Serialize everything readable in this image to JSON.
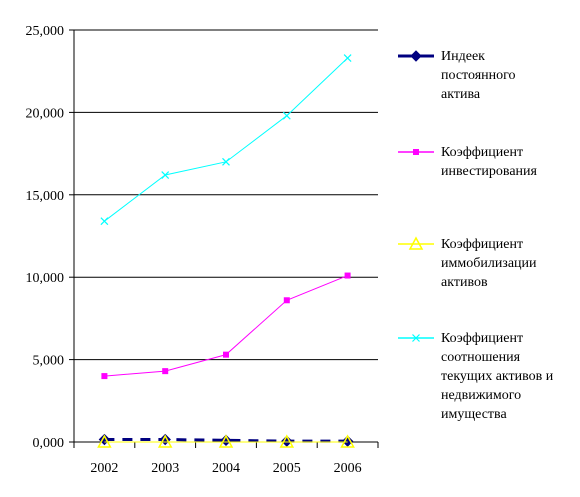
{
  "chart_data": {
    "type": "line",
    "categories": [
      "2002",
      "2003",
      "2004",
      "2005",
      "2006"
    ],
    "ylim": [
      0,
      25000
    ],
    "yticks": [
      0,
      5000,
      10000,
      15000,
      20000,
      25000
    ],
    "ytick_labels": [
      "0,000",
      "5,000",
      "10,000",
      "15,000",
      "20,000",
      "25,000"
    ],
    "grid": true,
    "legend_position": "right",
    "series": [
      {
        "name": "Индеек постоянного актива",
        "name_lines": [
          "Индеек",
          "постоянного",
          "актива"
        ],
        "values": [
          150,
          150,
          100,
          50,
          50
        ],
        "color": "#000080",
        "marker": "diamond",
        "dashed": true
      },
      {
        "name": "Коэффициент инвестирования",
        "name_lines": [
          "Коэффициент",
          "инвестирования"
        ],
        "values": [
          4000,
          4300,
          5300,
          8600,
          10100
        ],
        "color": "#ff00ff",
        "marker": "square",
        "dashed": false
      },
      {
        "name": "Коэффициент иммобилизации активов",
        "name_lines": [
          "Коэффициент",
          "иммобилизации",
          "активов"
        ],
        "values": [
          0,
          0,
          0,
          0,
          0
        ],
        "color": "#ffff00",
        "marker": "triangle",
        "dashed": false
      },
      {
        "name": "Коэффициент соотношения текущих активов и недвижимого имущества",
        "name_lines": [
          "Коэффициент",
          "соотношения",
          "текущих активов и",
          "недвижимого",
          "имущества"
        ],
        "values": [
          13400,
          16200,
          17000,
          19800,
          23300
        ],
        "color": "#00ffff",
        "marker": "x",
        "dashed": false
      }
    ]
  }
}
